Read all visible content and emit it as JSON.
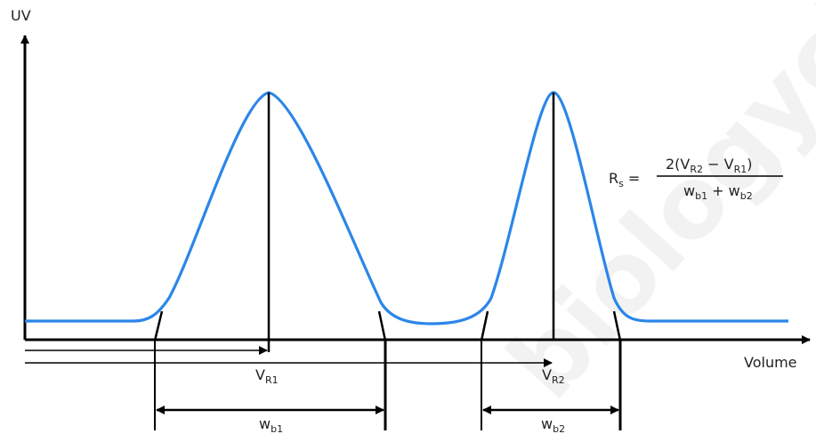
{
  "axis": {
    "y_label": "UV",
    "x_label": "Volume"
  },
  "peaks": [
    {
      "retention_main": "V",
      "retention_sub": "R1",
      "width_main": "w",
      "width_sub": "b1"
    },
    {
      "retention_main": "V",
      "retention_sub": "R2",
      "width_main": "w",
      "width_sub": "b2"
    }
  ],
  "formula": {
    "lhs_main": "R",
    "lhs_sub": "s",
    "equals": "=",
    "numerator": {
      "prefix": "2(V",
      "sub1": "R2",
      "minus": " − V",
      "sub2": "R1",
      "suffix": ")"
    },
    "denominator": {
      "w1": "w",
      "sub1": "b1",
      "plus": " + w",
      "sub2": "b2"
    }
  },
  "colors": {
    "curve": "#2b86e8",
    "lines": "#000000",
    "text": "#222222"
  },
  "watermark": "biologycias"
}
